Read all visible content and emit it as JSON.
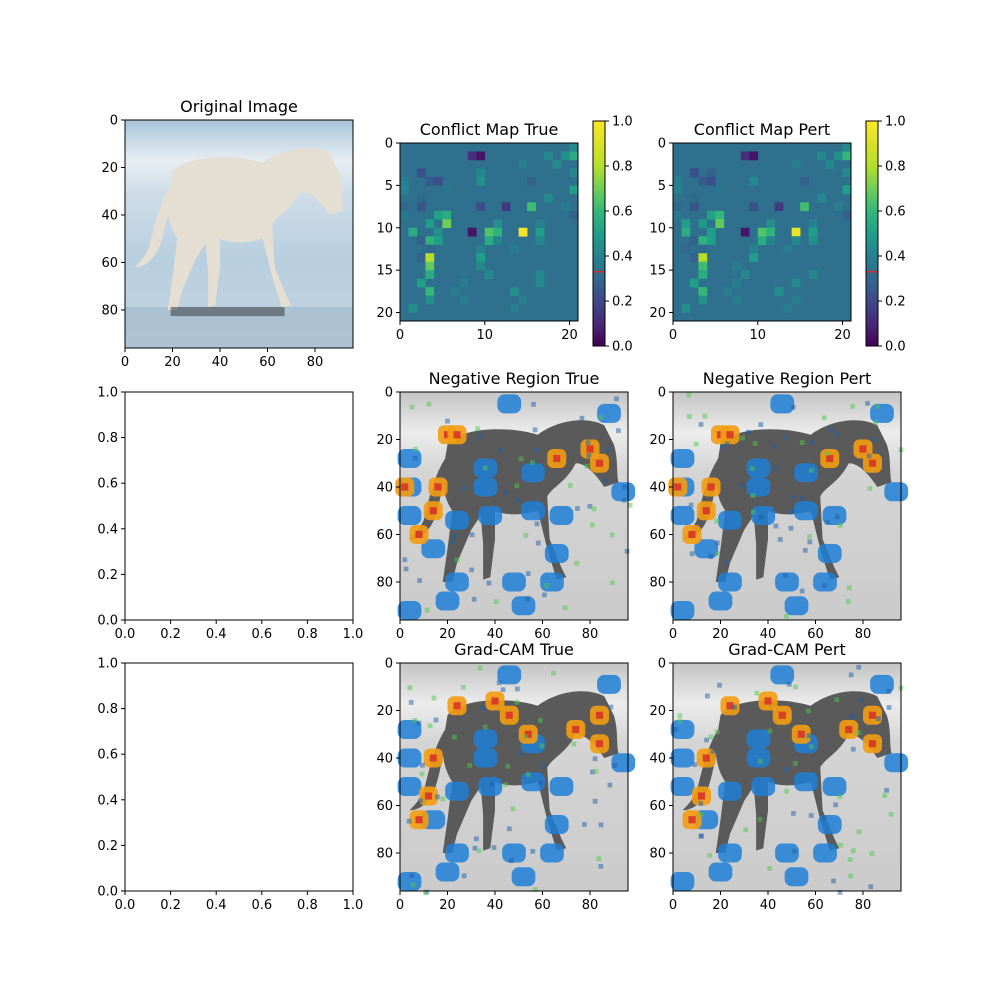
{
  "chart_data": [
    {
      "type": "image",
      "title": "Original Image",
      "subject": "white horse walking on beach",
      "xlim": [
        0,
        96
      ],
      "ylim": [
        96,
        0
      ],
      "xticks": [
        0,
        20,
        40,
        60,
        80
      ],
      "yticks": [
        0,
        20,
        40,
        60,
        80
      ]
    },
    {
      "type": "heatmap",
      "title": "Conflict Map True",
      "xlim": [
        0,
        21
      ],
      "ylim": [
        21,
        0
      ],
      "xticks": [
        0,
        10,
        20
      ],
      "yticks": [
        0,
        5,
        10,
        15,
        20
      ],
      "colormap": "viridis",
      "background_value": 0.33,
      "colorbar": {
        "ticks": [
          "0.0",
          "0.2",
          "0.4",
          "0.6",
          "0.8",
          "1.0"
        ],
        "range": [
          0,
          1
        ],
        "marker_value": 0.33,
        "marker_color": "#d62728"
      },
      "cells": [
        {
          "r": 0,
          "c": 20,
          "v": 0.42
        },
        {
          "r": 1,
          "c": 8,
          "v": 0.12
        },
        {
          "r": 1,
          "c": 9,
          "v": 0.05
        },
        {
          "r": 1,
          "c": 17,
          "v": 0.42
        },
        {
          "r": 1,
          "c": 19,
          "v": 0.45
        },
        {
          "r": 1,
          "c": 20,
          "v": 0.55
        },
        {
          "r": 2,
          "c": 14,
          "v": 0.38
        },
        {
          "r": 2,
          "c": 18,
          "v": 0.42
        },
        {
          "r": 3,
          "c": 2,
          "v": 0.22
        },
        {
          "r": 3,
          "c": 9,
          "v": 0.42
        },
        {
          "r": 3,
          "c": 20,
          "v": 0.42
        },
        {
          "r": 4,
          "c": 0,
          "v": 0.38
        },
        {
          "r": 4,
          "c": 3,
          "v": 0.25
        },
        {
          "r": 4,
          "c": 4,
          "v": 0.22
        },
        {
          "r": 4,
          "c": 9,
          "v": 0.45
        },
        {
          "r": 4,
          "c": 15,
          "v": 0.28
        },
        {
          "r": 5,
          "c": 0,
          "v": 0.4
        },
        {
          "r": 5,
          "c": 5,
          "v": 0.35
        },
        {
          "r": 5,
          "c": 20,
          "v": 0.5
        },
        {
          "r": 6,
          "c": 2,
          "v": 0.3
        },
        {
          "r": 6,
          "c": 17,
          "v": 0.42
        },
        {
          "r": 7,
          "c": 0,
          "v": 0.3
        },
        {
          "r": 7,
          "c": 2,
          "v": 0.24
        },
        {
          "r": 7,
          "c": 9,
          "v": 0.22
        },
        {
          "r": 7,
          "c": 12,
          "v": 0.15
        },
        {
          "r": 7,
          "c": 15,
          "v": 0.62
        },
        {
          "r": 7,
          "c": 19,
          "v": 0.38
        },
        {
          "r": 8,
          "c": 0,
          "v": 0.36
        },
        {
          "r": 8,
          "c": 4,
          "v": 0.52
        },
        {
          "r": 8,
          "c": 5,
          "v": 0.55
        },
        {
          "r": 8,
          "c": 20,
          "v": 0.28
        },
        {
          "r": 9,
          "c": 3,
          "v": 0.5
        },
        {
          "r": 9,
          "c": 5,
          "v": 0.7
        },
        {
          "r": 9,
          "c": 11,
          "v": 0.45
        },
        {
          "r": 9,
          "c": 16,
          "v": 0.4
        },
        {
          "r": 10,
          "c": 1,
          "v": 0.55
        },
        {
          "r": 10,
          "c": 4,
          "v": 0.45
        },
        {
          "r": 10,
          "c": 8,
          "v": 0.05
        },
        {
          "r": 10,
          "c": 10,
          "v": 0.65
        },
        {
          "r": 10,
          "c": 11,
          "v": 0.58
        },
        {
          "r": 10,
          "c": 14,
          "v": 0.98
        },
        {
          "r": 10,
          "c": 16,
          "v": 0.5
        },
        {
          "r": 11,
          "c": 2,
          "v": 0.28
        },
        {
          "r": 11,
          "c": 3,
          "v": 0.58
        },
        {
          "r": 11,
          "c": 4,
          "v": 0.5
        },
        {
          "r": 11,
          "c": 10,
          "v": 0.55
        },
        {
          "r": 11,
          "c": 11,
          "v": 0.4
        },
        {
          "r": 11,
          "c": 16,
          "v": 0.42
        },
        {
          "r": 12,
          "c": 3,
          "v": 0.3
        },
        {
          "r": 12,
          "c": 9,
          "v": 0.4
        },
        {
          "r": 12,
          "c": 13,
          "v": 0.38
        },
        {
          "r": 13,
          "c": 2,
          "v": 0.28
        },
        {
          "r": 13,
          "c": 3,
          "v": 0.8
        },
        {
          "r": 13,
          "c": 9,
          "v": 0.5
        },
        {
          "r": 14,
          "c": 3,
          "v": 0.68
        },
        {
          "r": 14,
          "c": 9,
          "v": 0.42
        },
        {
          "r": 15,
          "c": 3,
          "v": 0.55
        },
        {
          "r": 15,
          "c": 10,
          "v": 0.42
        },
        {
          "r": 15,
          "c": 16,
          "v": 0.42
        },
        {
          "r": 16,
          "c": 2,
          "v": 0.5
        },
        {
          "r": 16,
          "c": 7,
          "v": 0.38
        },
        {
          "r": 16,
          "c": 16,
          "v": 0.42
        },
        {
          "r": 17,
          "c": 3,
          "v": 0.6
        },
        {
          "r": 17,
          "c": 6,
          "v": 0.38
        },
        {
          "r": 17,
          "c": 13,
          "v": 0.45
        },
        {
          "r": 18,
          "c": 3,
          "v": 0.45
        },
        {
          "r": 18,
          "c": 7,
          "v": 0.38
        },
        {
          "r": 18,
          "c": 14,
          "v": 0.38
        },
        {
          "r": 19,
          "c": 1,
          "v": 0.45
        },
        {
          "r": 19,
          "c": 13,
          "v": 0.38
        }
      ]
    },
    {
      "type": "heatmap",
      "title": "Conflict Map Pert",
      "xlim": [
        0,
        21
      ],
      "ylim": [
        21,
        0
      ],
      "xticks": [
        0,
        10,
        20
      ],
      "yticks": [
        0,
        5,
        10,
        15,
        20
      ],
      "colormap": "viridis",
      "background_value": 0.33,
      "colorbar": {
        "ticks": [
          "0.0",
          "0.2",
          "0.4",
          "0.6",
          "0.8",
          "1.0"
        ],
        "range": [
          0,
          1
        ],
        "marker_value": 0.33,
        "marker_color": "#d62728"
      },
      "cells": [
        {
          "r": 0,
          "c": 20,
          "v": 0.42
        },
        {
          "r": 1,
          "c": 8,
          "v": 0.12
        },
        {
          "r": 1,
          "c": 9,
          "v": 0.05
        },
        {
          "r": 1,
          "c": 17,
          "v": 0.42
        },
        {
          "r": 1,
          "c": 19,
          "v": 0.45
        },
        {
          "r": 1,
          "c": 20,
          "v": 0.6
        },
        {
          "r": 2,
          "c": 14,
          "v": 0.38
        },
        {
          "r": 2,
          "c": 18,
          "v": 0.42
        },
        {
          "r": 3,
          "c": 2,
          "v": 0.22
        },
        {
          "r": 3,
          "c": 4,
          "v": 0.28
        },
        {
          "r": 3,
          "c": 20,
          "v": 0.42
        },
        {
          "r": 4,
          "c": 0,
          "v": 0.38
        },
        {
          "r": 4,
          "c": 3,
          "v": 0.25
        },
        {
          "r": 4,
          "c": 4,
          "v": 0.22
        },
        {
          "r": 4,
          "c": 9,
          "v": 0.42
        },
        {
          "r": 4,
          "c": 15,
          "v": 0.28
        },
        {
          "r": 5,
          "c": 0,
          "v": 0.4
        },
        {
          "r": 5,
          "c": 5,
          "v": 0.35
        },
        {
          "r": 5,
          "c": 20,
          "v": 0.5
        },
        {
          "r": 6,
          "c": 2,
          "v": 0.3
        },
        {
          "r": 6,
          "c": 17,
          "v": 0.42
        },
        {
          "r": 7,
          "c": 0,
          "v": 0.3
        },
        {
          "r": 7,
          "c": 2,
          "v": 0.24
        },
        {
          "r": 7,
          "c": 9,
          "v": 0.22
        },
        {
          "r": 7,
          "c": 12,
          "v": 0.15
        },
        {
          "r": 7,
          "c": 15,
          "v": 0.62
        },
        {
          "r": 7,
          "c": 19,
          "v": 0.38
        },
        {
          "r": 8,
          "c": 0,
          "v": 0.36
        },
        {
          "r": 8,
          "c": 4,
          "v": 0.52
        },
        {
          "r": 8,
          "c": 5,
          "v": 0.6
        },
        {
          "r": 8,
          "c": 20,
          "v": 0.28
        },
        {
          "r": 9,
          "c": 1,
          "v": 0.5
        },
        {
          "r": 9,
          "c": 3,
          "v": 0.48
        },
        {
          "r": 9,
          "c": 5,
          "v": 0.68
        },
        {
          "r": 9,
          "c": 11,
          "v": 0.45
        },
        {
          "r": 9,
          "c": 16,
          "v": 0.4
        },
        {
          "r": 10,
          "c": 1,
          "v": 0.55
        },
        {
          "r": 10,
          "c": 4,
          "v": 0.5
        },
        {
          "r": 10,
          "c": 8,
          "v": 0.05
        },
        {
          "r": 10,
          "c": 10,
          "v": 0.65
        },
        {
          "r": 10,
          "c": 11,
          "v": 0.58
        },
        {
          "r": 10,
          "c": 14,
          "v": 0.95
        },
        {
          "r": 10,
          "c": 16,
          "v": 0.5
        },
        {
          "r": 11,
          "c": 2,
          "v": 0.28
        },
        {
          "r": 11,
          "c": 3,
          "v": 0.58
        },
        {
          "r": 11,
          "c": 4,
          "v": 0.5
        },
        {
          "r": 11,
          "c": 10,
          "v": 0.55
        },
        {
          "r": 11,
          "c": 11,
          "v": 0.4
        },
        {
          "r": 11,
          "c": 14,
          "v": 0.42
        },
        {
          "r": 11,
          "c": 16,
          "v": 0.45
        },
        {
          "r": 12,
          "c": 1,
          "v": 0.3
        },
        {
          "r": 12,
          "c": 3,
          "v": 0.3
        },
        {
          "r": 12,
          "c": 9,
          "v": 0.4
        },
        {
          "r": 12,
          "c": 13,
          "v": 0.38
        },
        {
          "r": 13,
          "c": 2,
          "v": 0.28
        },
        {
          "r": 13,
          "c": 3,
          "v": 0.8
        },
        {
          "r": 13,
          "c": 9,
          "v": 0.5
        },
        {
          "r": 14,
          "c": 3,
          "v": 0.62
        },
        {
          "r": 14,
          "c": 7,
          "v": 0.38
        },
        {
          "r": 15,
          "c": 3,
          "v": 0.55
        },
        {
          "r": 15,
          "c": 8,
          "v": 0.42
        },
        {
          "r": 15,
          "c": 16,
          "v": 0.42
        },
        {
          "r": 16,
          "c": 2,
          "v": 0.5
        },
        {
          "r": 16,
          "c": 7,
          "v": 0.38
        },
        {
          "r": 16,
          "c": 14,
          "v": 0.42
        },
        {
          "r": 17,
          "c": 3,
          "v": 0.6
        },
        {
          "r": 17,
          "c": 6,
          "v": 0.38
        },
        {
          "r": 17,
          "c": 12,
          "v": 0.45
        },
        {
          "r": 18,
          "c": 3,
          "v": 0.45
        },
        {
          "r": 18,
          "c": 7,
          "v": 0.38
        },
        {
          "r": 18,
          "c": 14,
          "v": 0.38
        },
        {
          "r": 19,
          "c": 1,
          "v": 0.45
        },
        {
          "r": 19,
          "c": 13,
          "v": 0.38
        }
      ]
    },
    {
      "type": "empty",
      "title": "",
      "xlim": [
        0,
        1
      ],
      "ylim": [
        0,
        1
      ],
      "xticks": [
        "0.0",
        "0.2",
        "0.4",
        "0.6",
        "0.8",
        "1.0"
      ],
      "yticks": [
        "0.0",
        "0.2",
        "0.4",
        "0.6",
        "0.8",
        "1.0"
      ]
    },
    {
      "type": "image",
      "title": "Negative Region True",
      "subject": "grayscale horse with blue/orange overlay blobs",
      "xlim": [
        0,
        96
      ],
      "ylim": [
        96,
        0
      ],
      "xticks": [
        0,
        20,
        40,
        60,
        80
      ],
      "yticks": [
        0,
        20,
        40,
        60,
        80
      ]
    },
    {
      "type": "image",
      "title": "Negative Region Pert",
      "subject": "grayscale horse with blue/orange overlay blobs",
      "xlim": [
        0,
        96
      ],
      "ylim": [
        96,
        0
      ],
      "xticks": [
        0,
        20,
        40,
        60,
        80
      ],
      "yticks": [
        0,
        20,
        40,
        60,
        80
      ]
    },
    {
      "type": "empty",
      "title": "",
      "xlim": [
        0,
        1
      ],
      "ylim": [
        0,
        1
      ],
      "xticks": [
        "0.0",
        "0.2",
        "0.4",
        "0.6",
        "0.8",
        "1.0"
      ],
      "yticks": [
        "0.0",
        "0.2",
        "0.4",
        "0.6",
        "0.8",
        "1.0"
      ]
    },
    {
      "type": "image",
      "title": "Grad-CAM True",
      "subject": "grayscale horse with blue/orange overlay blobs",
      "xlim": [
        0,
        96
      ],
      "ylim": [
        96,
        0
      ],
      "xticks": [
        0,
        20,
        40,
        60,
        80
      ],
      "yticks": [
        0,
        20,
        40,
        60,
        80
      ]
    },
    {
      "type": "image",
      "title": "Grad-CAM Pert",
      "subject": "grayscale horse with blue/orange overlay blobs",
      "xlim": [
        0,
        96
      ],
      "ylim": [
        96,
        0
      ],
      "xticks": [
        0,
        20,
        40,
        60,
        80
      ],
      "yticks": [
        0,
        20,
        40,
        60,
        80
      ]
    }
  ]
}
